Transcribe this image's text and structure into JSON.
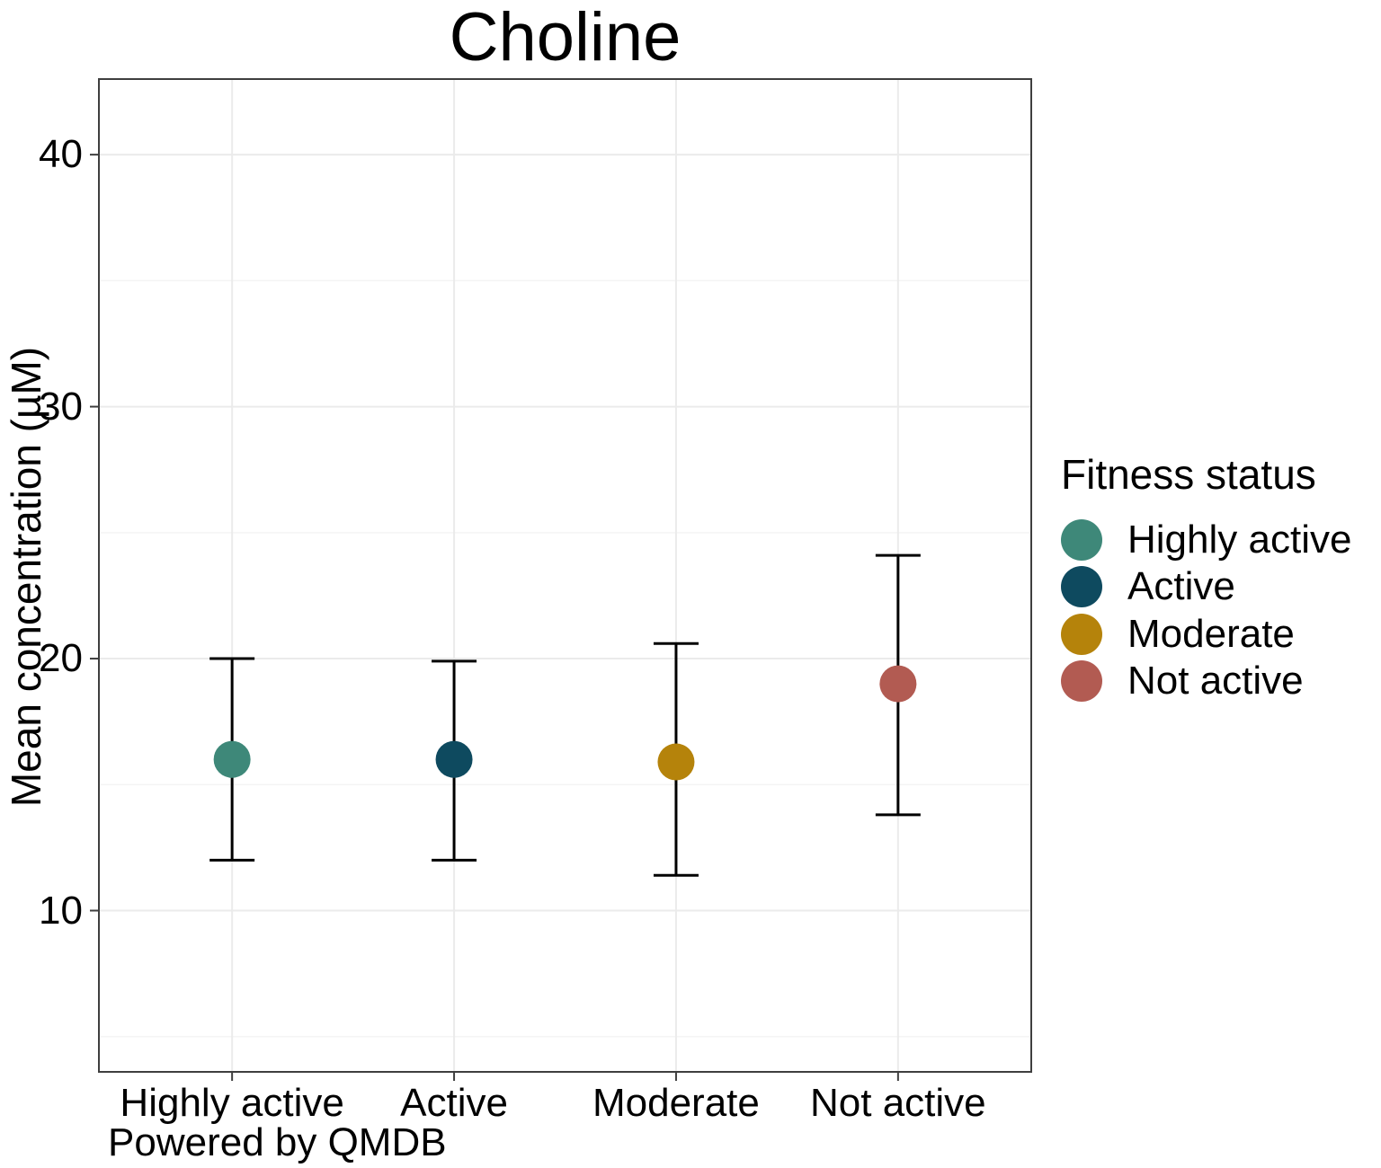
{
  "title": "Choline",
  "caption": "Powered by QMDB",
  "colors": {
    "highly_active": "#3E8879",
    "active": "#0E4A5F",
    "moderate": "#B5830B",
    "not_active": "#B25B52",
    "panel_border": "#3f3f3f",
    "grid_major": "#ebebeb",
    "grid_minor": "#f4f4f4",
    "error_bar": "#000000"
  },
  "chart_data": {
    "type": "scatter",
    "subtype": "point-range (mean with error bars)",
    "title": "Choline",
    "xlabel": "",
    "ylabel": "Mean concentration (µM)",
    "categories": [
      "Highly active",
      "Active",
      "Moderate",
      "Not active"
    ],
    "series": [
      {
        "name": "Mean concentration (µM)",
        "points": [
          {
            "category": "Highly active",
            "mean": 16.0,
            "lower": 12.0,
            "upper": 20.0,
            "color": "#3E8879"
          },
          {
            "category": "Active",
            "mean": 16.0,
            "lower": 12.0,
            "upper": 19.9,
            "color": "#0E4A5F"
          },
          {
            "category": "Moderate",
            "mean": 15.9,
            "lower": 11.4,
            "upper": 20.6,
            "color": "#B5830B"
          },
          {
            "category": "Not active",
            "mean": 19.0,
            "lower": 13.8,
            "upper": 24.1,
            "color": "#B25B52"
          }
        ]
      }
    ],
    "y_ticks": [
      10,
      20,
      30,
      40
    ],
    "y_minor_ticks": [
      5,
      15,
      25,
      35
    ],
    "ylim": [
      3.6,
      43.0
    ],
    "grid": true,
    "error_bars": true,
    "legend": {
      "title": "Fitness status",
      "position": "right",
      "items": [
        {
          "label": "Highly active",
          "color": "#3E8879"
        },
        {
          "label": "Active",
          "color": "#0E4A5F"
        },
        {
          "label": "Moderate",
          "color": "#B5830B"
        },
        {
          "label": "Not active",
          "color": "#B25B52"
        }
      ]
    }
  }
}
